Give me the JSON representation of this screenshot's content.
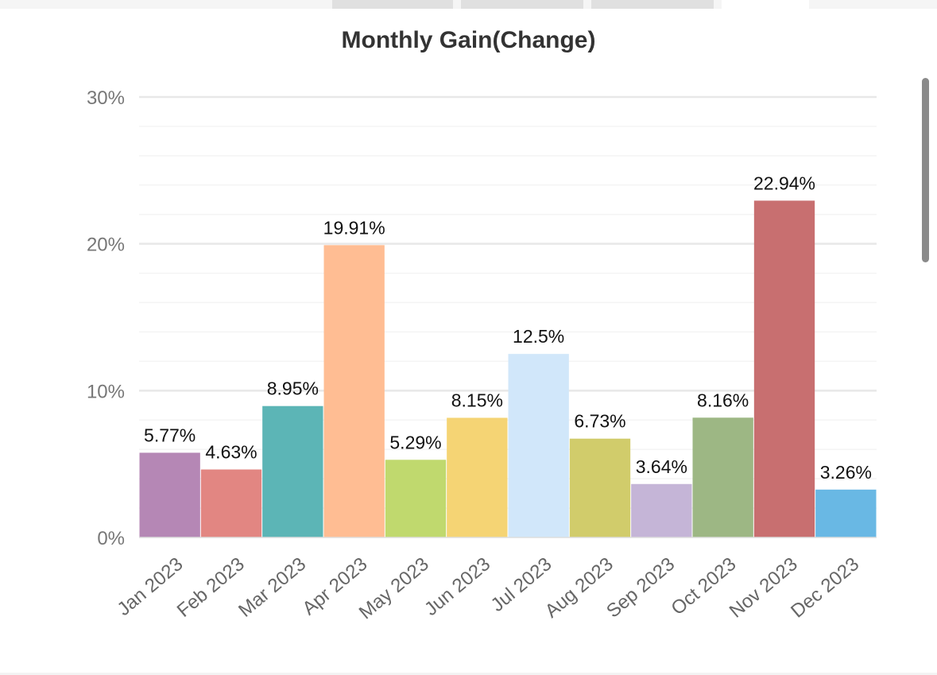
{
  "tabs": [
    {
      "label": "",
      "active": false
    },
    {
      "label": "",
      "active": false
    },
    {
      "label": "",
      "active": false
    },
    {
      "label": "",
      "active": true
    }
  ],
  "chart_data": {
    "type": "bar",
    "title": "Monthly Gain(Change)",
    "xlabel": "",
    "ylabel": "",
    "categories": [
      "Jan 2023",
      "Feb 2023",
      "Mar 2023",
      "Apr 2023",
      "May 2023",
      "Jun 2023",
      "Jul 2023",
      "Aug 2023",
      "Sep 2023",
      "Oct 2023",
      "Nov 2023",
      "Dec 2023"
    ],
    "values": [
      5.77,
      4.63,
      8.95,
      19.91,
      5.29,
      8.15,
      12.5,
      6.73,
      3.64,
      8.16,
      22.94,
      3.26
    ],
    "value_labels": [
      "5.77%",
      "4.63%",
      "8.95%",
      "19.91%",
      "5.29%",
      "8.15%",
      "12.5%",
      "6.73%",
      "3.64%",
      "8.16%",
      "22.94%",
      "3.26%"
    ],
    "colors": [
      "#b587b5",
      "#e28682",
      "#5cb5b6",
      "#ffbd93",
      "#c0d96e",
      "#f5d474",
      "#d1e7fa",
      "#d1cc6b",
      "#c5b5d7",
      "#9db784",
      "#c86f70",
      "#69b8e4"
    ],
    "ylim": [
      0,
      30
    ],
    "yticks": [
      0,
      10,
      20,
      30
    ],
    "ytick_labels": [
      "0%",
      "10%",
      "20%",
      "30%"
    ],
    "grid": true,
    "legend": "none"
  }
}
